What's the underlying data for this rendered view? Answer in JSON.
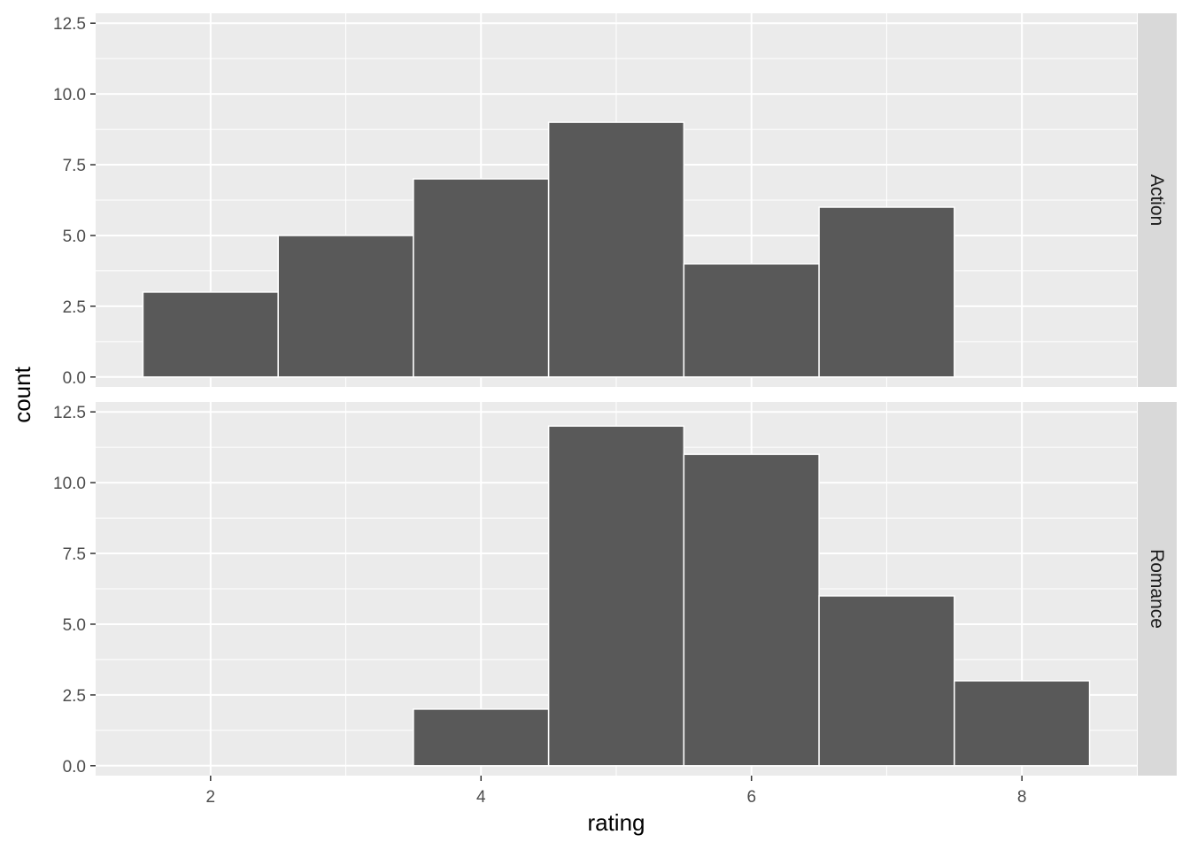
{
  "chart_data": {
    "type": "bar",
    "subtype": "histogram-facets",
    "xlabel": "rating",
    "ylabel": "count",
    "xlim": [
      1.15,
      8.85
    ],
    "ylim": [
      -0.35,
      12.85
    ],
    "x_ticks": [
      2,
      4,
      6,
      8
    ],
    "y_ticks": [
      0.0,
      2.5,
      5.0,
      7.5,
      10.0,
      12.5
    ],
    "y_tick_labels": [
      "0.0",
      "2.5",
      "5.0",
      "7.5",
      "10.0",
      "12.5"
    ],
    "bin_width": 1,
    "grid": true,
    "colors": {
      "bar_fill": "#595959",
      "bar_stroke": "#ffffff",
      "panel_bg": "#ebebeb",
      "strip_bg": "#d9d9d9",
      "grid": "#ffffff"
    },
    "facets": [
      {
        "label": "Action",
        "bins": [
          {
            "x": 2,
            "count": 3
          },
          {
            "x": 3,
            "count": 5
          },
          {
            "x": 4,
            "count": 7
          },
          {
            "x": 5,
            "count": 9
          },
          {
            "x": 6,
            "count": 4
          },
          {
            "x": 7,
            "count": 6
          }
        ]
      },
      {
        "label": "Romance",
        "bins": [
          {
            "x": 4,
            "count": 2
          },
          {
            "x": 5,
            "count": 12
          },
          {
            "x": 6,
            "count": 11
          },
          {
            "x": 7,
            "count": 6
          },
          {
            "x": 8,
            "count": 3
          }
        ]
      }
    ]
  }
}
